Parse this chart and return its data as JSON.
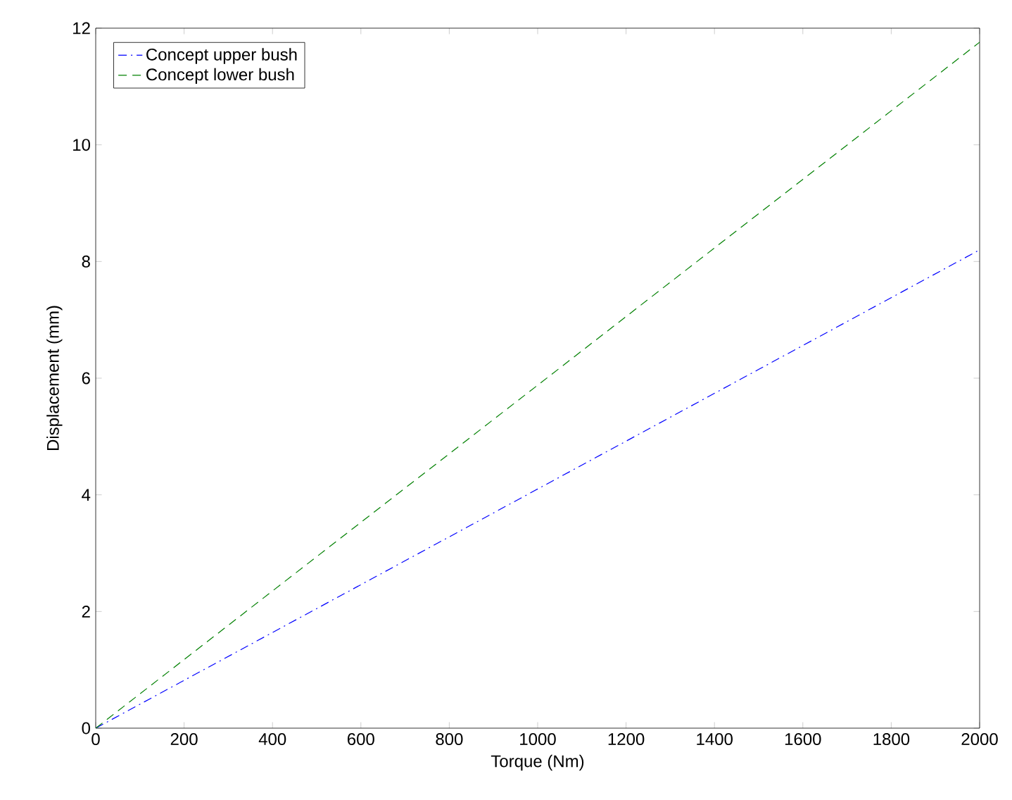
{
  "chart_data": {
    "type": "line",
    "xlabel": "Torque (Nm)",
    "ylabel": "Displacement (mm)",
    "x": [
      0,
      500,
      1000,
      1500,
      2000
    ],
    "series": [
      {
        "name": "Concept upper bush",
        "color": "#0000ff",
        "line_style": "dashdot",
        "values": [
          0,
          2.05,
          4.1,
          6.15,
          8.2
        ]
      },
      {
        "name": "Concept lower bush",
        "color": "#008000",
        "line_style": "dashed",
        "values": [
          0,
          2.94,
          5.88,
          8.82,
          11.76
        ]
      }
    ],
    "xlim": [
      0,
      2000
    ],
    "ylim": [
      0,
      12
    ],
    "xticks": [
      0,
      200,
      400,
      600,
      800,
      1000,
      1200,
      1400,
      1600,
      1800,
      2000
    ],
    "yticks": [
      0,
      2,
      4,
      6,
      8,
      10,
      12
    ],
    "grid": false,
    "legend": "top left",
    "marker": "none"
  }
}
